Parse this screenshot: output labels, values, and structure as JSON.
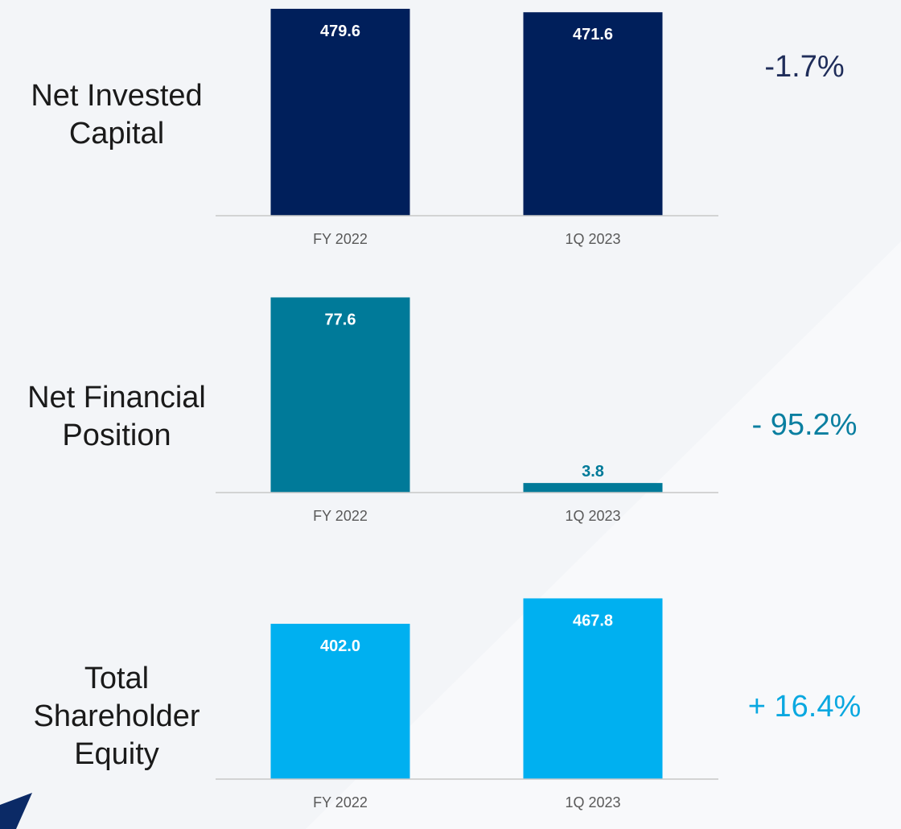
{
  "chart_data": [
    {
      "type": "bar",
      "title": "Net Invested Capital",
      "categories": [
        "FY 2022",
        "1Q 2023"
      ],
      "values": [
        479.6,
        471.6
      ],
      "value_labels": [
        "479.6",
        "471.6"
      ],
      "color": "#001f5b",
      "ylim": [
        0,
        500
      ],
      "annotation": "-1.7%",
      "annotation_color": "#1f2d5a"
    },
    {
      "type": "bar",
      "title": "Net Financial Position",
      "categories": [
        "FY 2022",
        "1Q 2023"
      ],
      "values": [
        77.6,
        3.8
      ],
      "value_labels": [
        "77.6",
        "3.8"
      ],
      "color": "#007a99",
      "ylim": [
        0,
        80
      ],
      "annotation": "- 95.2%",
      "annotation_color": "#0a7fa0"
    },
    {
      "type": "bar",
      "title": "Total Shareholder Equity",
      "categories": [
        "FY 2022",
        "1Q 2023"
      ],
      "values": [
        402.0,
        467.8
      ],
      "value_labels": [
        "402.0",
        "467.8"
      ],
      "color": "#00b0f0",
      "ylim": [
        0,
        500
      ],
      "annotation": "+ 16.4%",
      "annotation_color": "#0aa8e0"
    }
  ]
}
